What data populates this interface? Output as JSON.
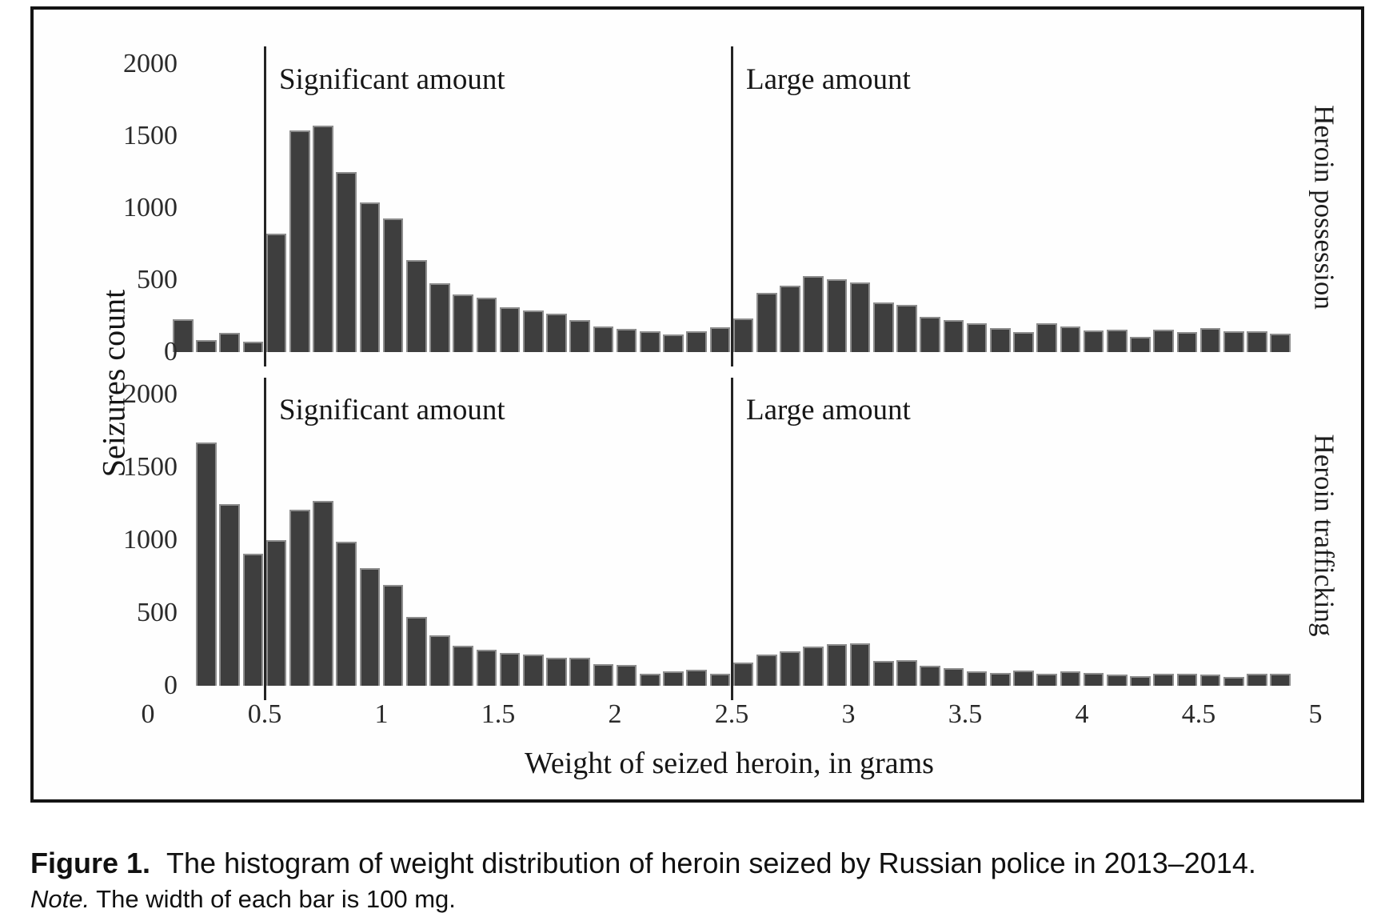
{
  "figure": {
    "caption_label": "Figure 1.",
    "caption_text": "The histogram of weight distribution of heroin seized by Russian police in 2013–2014.",
    "note_label": "Note.",
    "note_text": "The width of each bar is 100 mg."
  },
  "chart_data": {
    "type": "bar",
    "subtype": "histogram",
    "title": "",
    "xlabel": "Weight of seized heroin, in grams",
    "ylabel": "Seizures count",
    "bar_color": "#3e3e3e",
    "bar_edge_color": "#8d8d8d",
    "grid": false,
    "legend": false,
    "xlim": [
      0,
      5.1
    ],
    "ylim": [
      0,
      2100
    ],
    "x_ticks": [
      0,
      0.5,
      1,
      1.5,
      2,
      2.5,
      3,
      3.5,
      4,
      4.5,
      5
    ],
    "x_tick_labels": [
      "0",
      "0.5",
      "1",
      "1.5",
      "2",
      "2.5",
      "3",
      "3.5",
      "4",
      "4.5",
      "5"
    ],
    "y_ticks": [
      0,
      500,
      1000,
      1500,
      2000
    ],
    "y_tick_labels": [
      "0",
      "500",
      "1000",
      "1500",
      "2000"
    ],
    "bin_width": 0.1,
    "reference_lines": [
      {
        "x": 0.5,
        "label": "Significant amount"
      },
      {
        "x": 2.5,
        "label": "Large amount"
      }
    ],
    "panels": [
      {
        "strip_label": "Heroin possession",
        "bin_start": 0.1,
        "values": [
          230,
          85,
          135,
          70,
          820,
          1540,
          1570,
          1250,
          1040,
          930,
          640,
          480,
          400,
          380,
          310,
          290,
          265,
          220,
          180,
          160,
          145,
          120,
          145,
          175,
          235,
          410,
          460,
          530,
          505,
          485,
          345,
          330,
          245,
          220,
          200,
          165,
          140,
          200,
          180,
          150,
          155,
          105,
          155,
          140,
          165,
          145,
          145,
          130
        ]
      },
      {
        "strip_label": "Heroin trafficking",
        "bin_start": 0.2,
        "values": [
          1670,
          1250,
          905,
          1000,
          1210,
          1270,
          990,
          810,
          690,
          475,
          345,
          275,
          245,
          225,
          215,
          195,
          190,
          150,
          145,
          85,
          100,
          110,
          80,
          160,
          215,
          235,
          270,
          285,
          290,
          170,
          175,
          140,
          120,
          100,
          90,
          105,
          85,
          100,
          90,
          75,
          65,
          80,
          80,
          75,
          60,
          80,
          80
        ]
      }
    ]
  }
}
